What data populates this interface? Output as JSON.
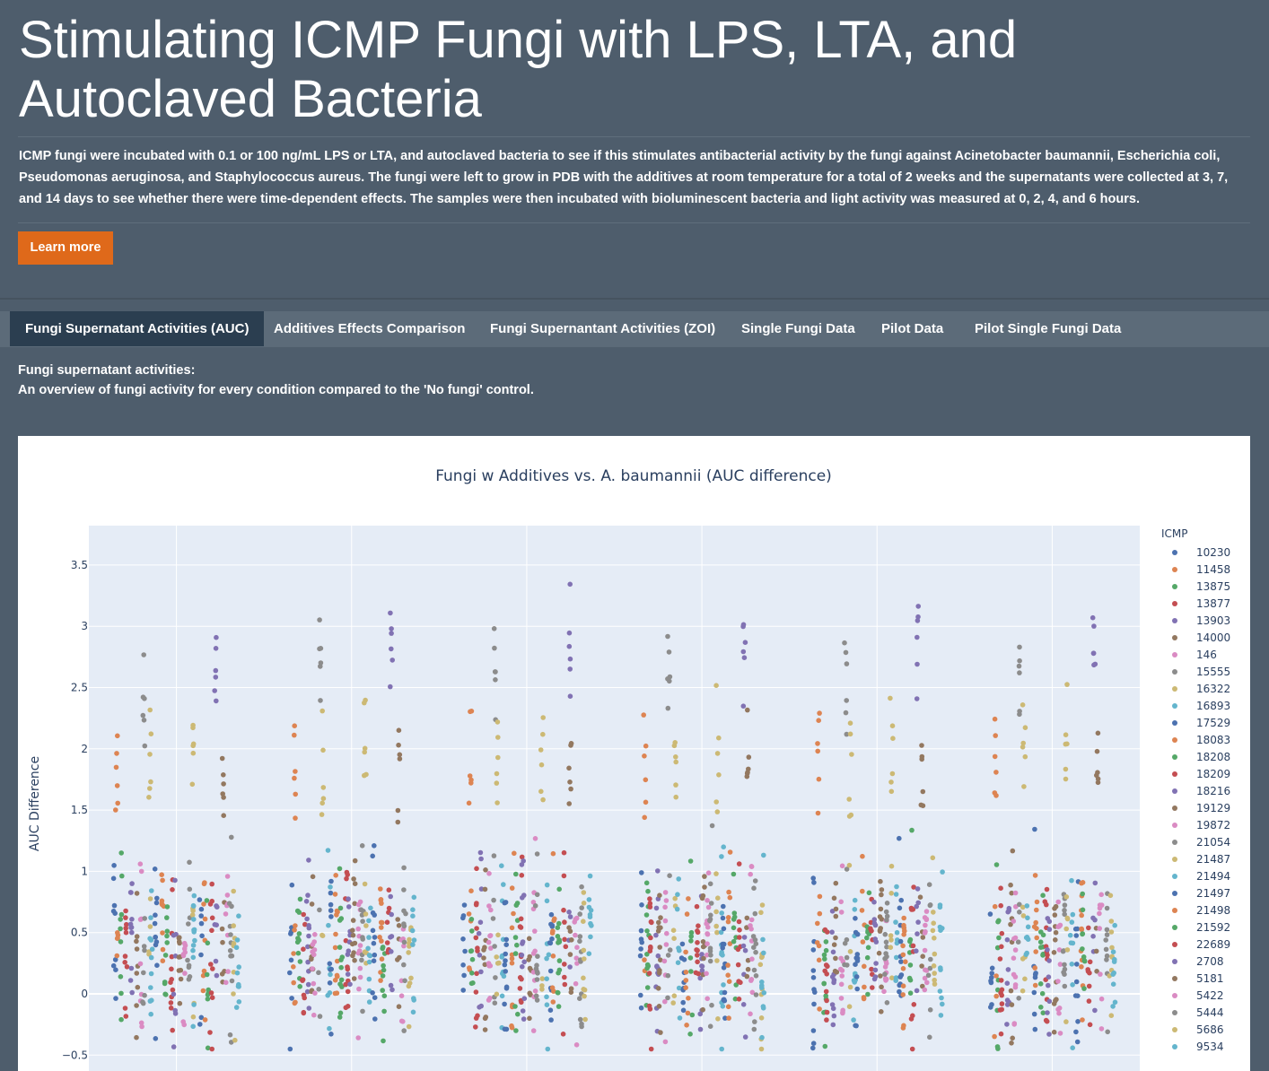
{
  "header": {
    "title": "Stimulating ICMP Fungi with LPS, LTA, and Autoclaved Bacteria",
    "lead": "ICMP fungi were incubated with 0.1 or 100 ng/mL LPS or LTA, and autoclaved bacteria to see if this stimulates antibacterial activity by the fungi against Acinetobacter baumannii, Escherichia coli, Pseudomonas aeruginosa, and Staphylococcus aureus. The fungi were left to grow in PDB with the additives at room temperature for a total of 2 weeks and the supernatants were collected at 3, 7, and 14 days to see whether there were time-dependent effects. The samples were then incubated with bioluminescent bacteria and light activity was measured at 0, 2, 4, and 6 hours.",
    "learn_more": "Learn more",
    "button_color": "#df691a"
  },
  "tabs": [
    {
      "label": "Fungi Supernatant Activities (AUC)",
      "active": true
    },
    {
      "label": "Additives Effects Comparison",
      "active": false
    },
    {
      "label": "Fungi Supernantant Activities (ZOI)",
      "active": false
    },
    {
      "label": "Single Fungi Data",
      "active": false
    },
    {
      "label": "Pilot Data",
      "active": false
    },
    {
      "label": "Pilot Single Fungi Data",
      "active": false
    }
  ],
  "description": {
    "line1": "Fungi supernatant activities:",
    "line2": "An overview of fungi activity for every condition compared to the 'No fungi' control."
  },
  "chart_data": {
    "type": "scatter",
    "title": "Fungi w Additives vs. A. baumannii (AUC difference)",
    "ylabel": "AUC Difference",
    "ylim": [
      -0.55,
      3.85
    ],
    "yticks": [
      -0.5,
      0,
      0.5,
      1,
      1.5,
      2,
      2.5,
      3,
      3.5
    ],
    "ytick_labels": [
      "−0.5",
      "0",
      "0.5",
      "1",
      "1.5",
      "2",
      "2.5",
      "3",
      "3.5"
    ],
    "n_groups": 6,
    "grid": true,
    "legend_position": "right",
    "legend_title": "ICMP",
    "series": [
      {
        "name": "10230",
        "color": "#4c72b0"
      },
      {
        "name": "11458",
        "color": "#dd8452"
      },
      {
        "name": "13875",
        "color": "#55a868"
      },
      {
        "name": "13877",
        "color": "#c44e52"
      },
      {
        "name": "13903",
        "color": "#8172b3"
      },
      {
        "name": "14000",
        "color": "#937860"
      },
      {
        "name": "146",
        "color": "#da8bc3"
      },
      {
        "name": "15555",
        "color": "#8c8c8c"
      },
      {
        "name": "16322",
        "color": "#ccb974"
      },
      {
        "name": "16893",
        "color": "#64b5cd"
      },
      {
        "name": "17529",
        "color": "#4c72b0"
      },
      {
        "name": "18083",
        "color": "#dd8452"
      },
      {
        "name": "18208",
        "color": "#55a868"
      },
      {
        "name": "18209",
        "color": "#c44e52"
      },
      {
        "name": "18216",
        "color": "#8172b3"
      },
      {
        "name": "19129",
        "color": "#937860"
      },
      {
        "name": "19872",
        "color": "#da8bc3"
      },
      {
        "name": "21054",
        "color": "#8c8c8c"
      },
      {
        "name": "21487",
        "color": "#ccb974"
      },
      {
        "name": "21494",
        "color": "#64b5cd"
      },
      {
        "name": "21497",
        "color": "#4c72b0"
      },
      {
        "name": "21498",
        "color": "#dd8452"
      },
      {
        "name": "21592",
        "color": "#55a868"
      },
      {
        "name": "22689",
        "color": "#c44e52"
      },
      {
        "name": "2708",
        "color": "#8172b3"
      },
      {
        "name": "5181",
        "color": "#937860"
      },
      {
        "name": "5422",
        "color": "#da8bc3"
      },
      {
        "name": "5444",
        "color": "#8c8c8c"
      },
      {
        "name": "5686",
        "color": "#ccb974"
      },
      {
        "name": "9534",
        "color": "#64b5cd"
      }
    ]
  }
}
